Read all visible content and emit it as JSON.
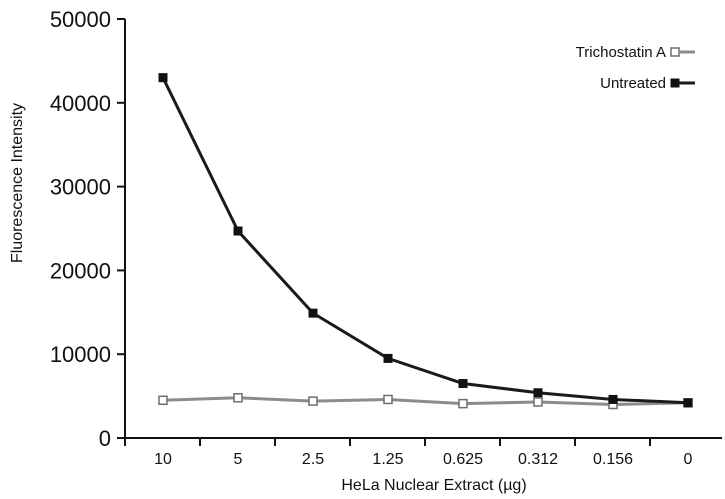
{
  "chart_data": {
    "type": "line",
    "title": "",
    "xlabel": "HeLa Nuclear Extract (µg)",
    "ylabel": "Fluorescence Intensity",
    "categories": [
      "10",
      "5",
      "2.5",
      "1.25",
      "0.625",
      "0.312",
      "0.156",
      "0"
    ],
    "ylim": [
      0,
      50000
    ],
    "yticks": [
      "0",
      "10000",
      "20000",
      "30000",
      "40000",
      "50000"
    ],
    "grid": false,
    "legend_position": "top-right",
    "series": [
      {
        "name": "Trichostatin A",
        "values": [
          4500,
          4800,
          4400,
          4600,
          4100,
          4300,
          4000,
          4200
        ],
        "line_color": "#8c8c8c",
        "marker": "open-square"
      },
      {
        "name": "Untreated",
        "values": [
          43000,
          24700,
          14900,
          9500,
          6500,
          5400,
          4600,
          4200
        ],
        "line_color": "#1a1a1a",
        "marker": "filled-square"
      }
    ]
  }
}
